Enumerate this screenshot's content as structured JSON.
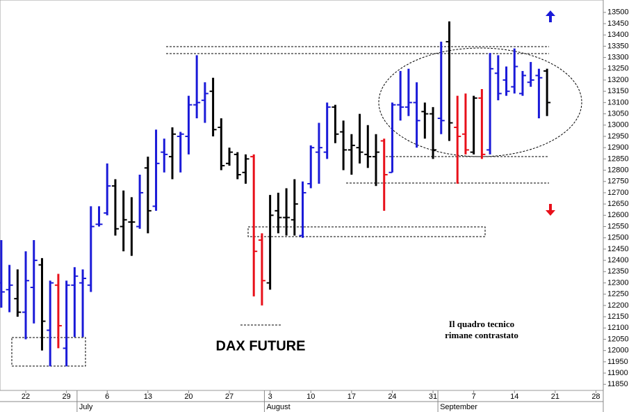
{
  "chart_data": {
    "type": "ohlc",
    "title": "DAX FUTURE",
    "annotation": [
      "Il quadro tecnico",
      "rimane contrastato"
    ],
    "x": [
      2,
      3,
      4,
      5,
      6,
      7,
      8,
      9,
      10,
      11,
      12,
      13,
      14,
      15,
      16,
      17,
      18,
      19,
      20,
      21,
      22,
      23,
      24,
      25,
      26,
      27,
      28,
      29,
      30,
      31,
      32,
      33,
      34,
      35,
      36,
      37,
      38,
      39,
      40,
      41,
      42,
      43,
      44,
      45,
      46,
      47,
      48,
      49,
      50,
      51,
      52,
      53,
      54,
      55,
      56,
      57,
      58,
      59,
      60,
      61,
      62,
      63,
      64,
      65,
      66,
      67,
      68,
      69
    ],
    "open": [
      12300,
      12270,
      12230,
      12170,
      12280,
      12380,
      12090,
      12290,
      12010,
      12290,
      12300,
      12290,
      12560,
      12610,
      12730,
      12550,
      12570,
      12550,
      12810,
      12640,
      12880,
      12860,
      12950,
      12950,
      13090,
      13110,
      13150,
      12990,
      12830,
      12870,
      12790,
      12860,
      12490,
      12300,
      12620,
      12590,
      12580,
      12510,
      12740,
      12880,
      12880,
      13080,
      12970,
      12890,
      12900,
      12870,
      12860,
      12930,
      12790,
      13090,
      13080,
      13100,
      13060,
      13050,
      13030,
      13370,
      12990,
      12960,
      12880,
      13120,
      12890,
      13230,
      13200,
      13170,
      13140,
      13190,
      13220,
      13240
    ],
    "high": [
      12490,
      12380,
      12360,
      12440,
      12490,
      12410,
      12310,
      12340,
      12310,
      12370,
      12360,
      12640,
      12640,
      12830,
      12760,
      12710,
      12680,
      12780,
      12860,
      12980,
      12940,
      12990,
      12970,
      13130,
      13310,
      13190,
      13210,
      13030,
      12900,
      12880,
      12870,
      12870,
      12520,
      12690,
      12700,
      12720,
      12760,
      12750,
      12910,
      13010,
      13100,
      13090,
      13020,
      12960,
      13050,
      13000,
      12960,
      12940,
      13100,
      13240,
      13250,
      13190,
      13100,
      13080,
      13370,
      13460,
      13130,
      13140,
      13130,
      13160,
      13320,
      13310,
      13260,
      13340,
      13240,
      13280,
      13250,
      13250
    ],
    "low": [
      12190,
      12170,
      12150,
      12050,
      12120,
      12000,
      11930,
      12010,
      11930,
      12060,
      12060,
      12260,
      12550,
      12600,
      12510,
      12440,
      12420,
      12540,
      12520,
      12620,
      12790,
      12760,
      12790,
      12870,
      13030,
      13010,
      12950,
      12800,
      12820,
      12760,
      12740,
      12240,
      12200,
      12270,
      12520,
      12510,
      12510,
      12500,
      12720,
      12740,
      12850,
      12920,
      12800,
      12780,
      12830,
      12810,
      12730,
      12620,
      12790,
      13020,
      13040,
      12900,
      12940,
      12850,
      12960,
      12930,
      12740,
      12870,
      12870,
      12850,
      12870,
      13110,
      13130,
      13140,
      13130,
      13170,
      13030,
      13040
    ],
    "close": [
      12260,
      12290,
      12170,
      12310,
      12400,
      12130,
      12300,
      12110,
      12290,
      12330,
      12320,
      12550,
      12560,
      12730,
      12540,
      12580,
      12570,
      12700,
      12620,
      12830,
      12870,
      12960,
      12960,
      13090,
      13100,
      13140,
      12980,
      12820,
      12880,
      12780,
      12850,
      12440,
      12310,
      12600,
      12590,
      12590,
      12650,
      12700,
      12900,
      12900,
      13080,
      12960,
      12890,
      12910,
      12880,
      12860,
      12880,
      12780,
      13090,
      13080,
      13100,
      13020,
      13050,
      12890,
      13020,
      13010,
      12950,
      12890,
      13120,
      12870,
      13250,
      13140,
      13150,
      13260,
      13220,
      13200,
      13210,
      13100
    ],
    "colors": [
      "#1a1ad8",
      "#1a1ad8",
      "#000000",
      "#1a1ad8",
      "#1a1ad8",
      "#000000",
      "#1a1ad8",
      "#e8101a",
      "#1a1ad8",
      "#1a1ad8",
      "#1a1ad8",
      "#1a1ad8",
      "#1a1ad8",
      "#1a1ad8",
      "#000000",
      "#000000",
      "#000000",
      "#1a1ad8",
      "#000000",
      "#1a1ad8",
      "#1a1ad8",
      "#000000",
      "#1a1ad8",
      "#1a1ad8",
      "#1a1ad8",
      "#1a1ad8",
      "#000000",
      "#000000",
      "#000000",
      "#000000",
      "#000000",
      "#e8101a",
      "#e8101a",
      "#000000",
      "#000000",
      "#000000",
      "#000000",
      "#1a1ad8",
      "#1a1ad8",
      "#1a1ad8",
      "#1a1ad8",
      "#000000",
      "#000000",
      "#000000",
      "#000000",
      "#000000",
      "#000000",
      "#e8101a",
      "#1a1ad8",
      "#1a1ad8",
      "#1a1ad8",
      "#1a1ad8",
      "#000000",
      "#000000",
      "#1a1ad8",
      "#000000",
      "#e8101a",
      "#e8101a",
      "#000000",
      "#e8101a",
      "#1a1ad8",
      "#1a1ad8",
      "#1a1ad8",
      "#1a1ad8",
      "#1a1ad8",
      "#1a1ad8",
      "#1a1ad8",
      "#000000"
    ],
    "xlim": [
      1.84,
      75.9
    ],
    "xticks": [
      {
        "value": 5,
        "label": "22"
      },
      {
        "value": 10,
        "label": "29"
      },
      {
        "value": 15,
        "label": "6"
      },
      {
        "value": 20,
        "label": "13"
      },
      {
        "value": 25,
        "label": "20"
      },
      {
        "value": 30,
        "label": "27"
      },
      {
        "value": 35,
        "label": "3"
      },
      {
        "value": 40,
        "label": "10"
      },
      {
        "value": 45,
        "label": "17"
      },
      {
        "value": 50,
        "label": "24"
      },
      {
        "value": 55,
        "label": "31"
      },
      {
        "value": 60,
        "label": "7"
      },
      {
        "value": 65,
        "label": "14"
      },
      {
        "value": 70,
        "label": "21"
      },
      {
        "value": 75,
        "label": "28"
      }
    ],
    "month_ticks": [
      {
        "value": 11.3,
        "label": "July"
      },
      {
        "value": 34.3,
        "label": "August"
      },
      {
        "value": 55.6,
        "label": "September"
      }
    ],
    "ylim": [
      11823,
      13555
    ],
    "yticks": [
      11850,
      11900,
      11950,
      12000,
      12050,
      12100,
      12150,
      12200,
      12250,
      12300,
      12350,
      12400,
      12450,
      12500,
      12550,
      12600,
      12650,
      12700,
      12750,
      12800,
      12850,
      12900,
      12950,
      13000,
      13050,
      13100,
      13150,
      13200,
      13250,
      13300,
      13350,
      13400,
      13450,
      13500
    ]
  }
}
